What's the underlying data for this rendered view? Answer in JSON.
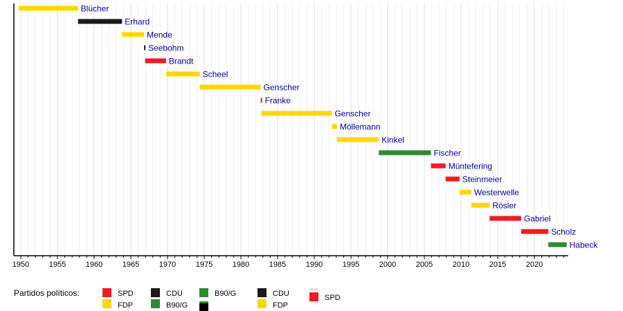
{
  "chart_data": {
    "type": "timeline",
    "title": "",
    "xlim": [
      1949.1,
      2024.6
    ],
    "xticks": [
      1950,
      1955,
      1960,
      1965,
      1970,
      1975,
      1980,
      1985,
      1990,
      1995,
      2000,
      2005,
      2010,
      2015,
      2020
    ],
    "grid": "vertical, yearly",
    "colors": {
      "SPD": "#ee1c25",
      "FDP": "#ffd700",
      "CDU": "#1a1a1a",
      "B90/G": "#2e8b2e",
      "label": "#0000a0"
    },
    "bars": [
      {
        "name": "Blücher",
        "start": 1949.7,
        "end": 1957.8,
        "party": "FDP"
      },
      {
        "name": "Erhard",
        "start": 1957.8,
        "end": 1963.8,
        "party": "CDU"
      },
      {
        "name": "Mende",
        "start": 1963.8,
        "end": 1966.8,
        "party": "FDP"
      },
      {
        "name": "Seebohm",
        "start": 1966.8,
        "end": 1966.95,
        "party": "CDU"
      },
      {
        "name": "Brandt",
        "start": 1966.95,
        "end": 1969.8,
        "party": "SPD"
      },
      {
        "name": "Scheel",
        "start": 1969.8,
        "end": 1974.4,
        "party": "FDP"
      },
      {
        "name": "Genscher",
        "start": 1974.4,
        "end": 1982.7,
        "party": "FDP"
      },
      {
        "name": "Franke",
        "start": 1982.7,
        "end": 1982.8,
        "party": "SPD"
      },
      {
        "name": "Genscher",
        "start": 1982.8,
        "end": 1992.4,
        "party": "FDP"
      },
      {
        "name": "Möllemann",
        "start": 1992.4,
        "end": 1993.1,
        "party": "FDP"
      },
      {
        "name": "Kinkel",
        "start": 1993.1,
        "end": 1998.8,
        "party": "FDP"
      },
      {
        "name": "Fischer",
        "start": 1998.8,
        "end": 2005.9,
        "party": "B90/G"
      },
      {
        "name": "Müntefering",
        "start": 2005.9,
        "end": 2007.9,
        "party": "SPD"
      },
      {
        "name": "Steinmeier",
        "start": 2007.9,
        "end": 2009.8,
        "party": "SPD"
      },
      {
        "name": "Westerwelle",
        "start": 2009.8,
        "end": 2011.4,
        "party": "FDP"
      },
      {
        "name": "Rösler",
        "start": 2011.4,
        "end": 2013.9,
        "party": "FDP"
      },
      {
        "name": "Gabriel",
        "start": 2013.9,
        "end": 2018.2,
        "party": "SPD"
      },
      {
        "name": "Scholz",
        "start": 2018.2,
        "end": 2021.9,
        "party": "SPD"
      },
      {
        "name": "Habeck",
        "start": 2021.9,
        "end": 2024.4,
        "party": "B90/G"
      }
    ],
    "legend": {
      "title": "Partidos políticos:",
      "entries": [
        {
          "label": "SPD",
          "color": "#ee1c25"
        },
        {
          "label": "FDP",
          "color": "#ffd700"
        },
        {
          "label": "CDU",
          "color": "#1a1a1a"
        },
        {
          "label": "B90/G",
          "color": "#2e8b2e"
        },
        {
          "label": "B90/G",
          "color": "#2e8b2e"
        },
        {
          "label": "CDU",
          "color": "#1a1a1a"
        },
        {
          "label": "FDP",
          "color": "#ffd700"
        },
        {
          "label": "SPD",
          "color": "#ee1c25"
        }
      ]
    }
  }
}
